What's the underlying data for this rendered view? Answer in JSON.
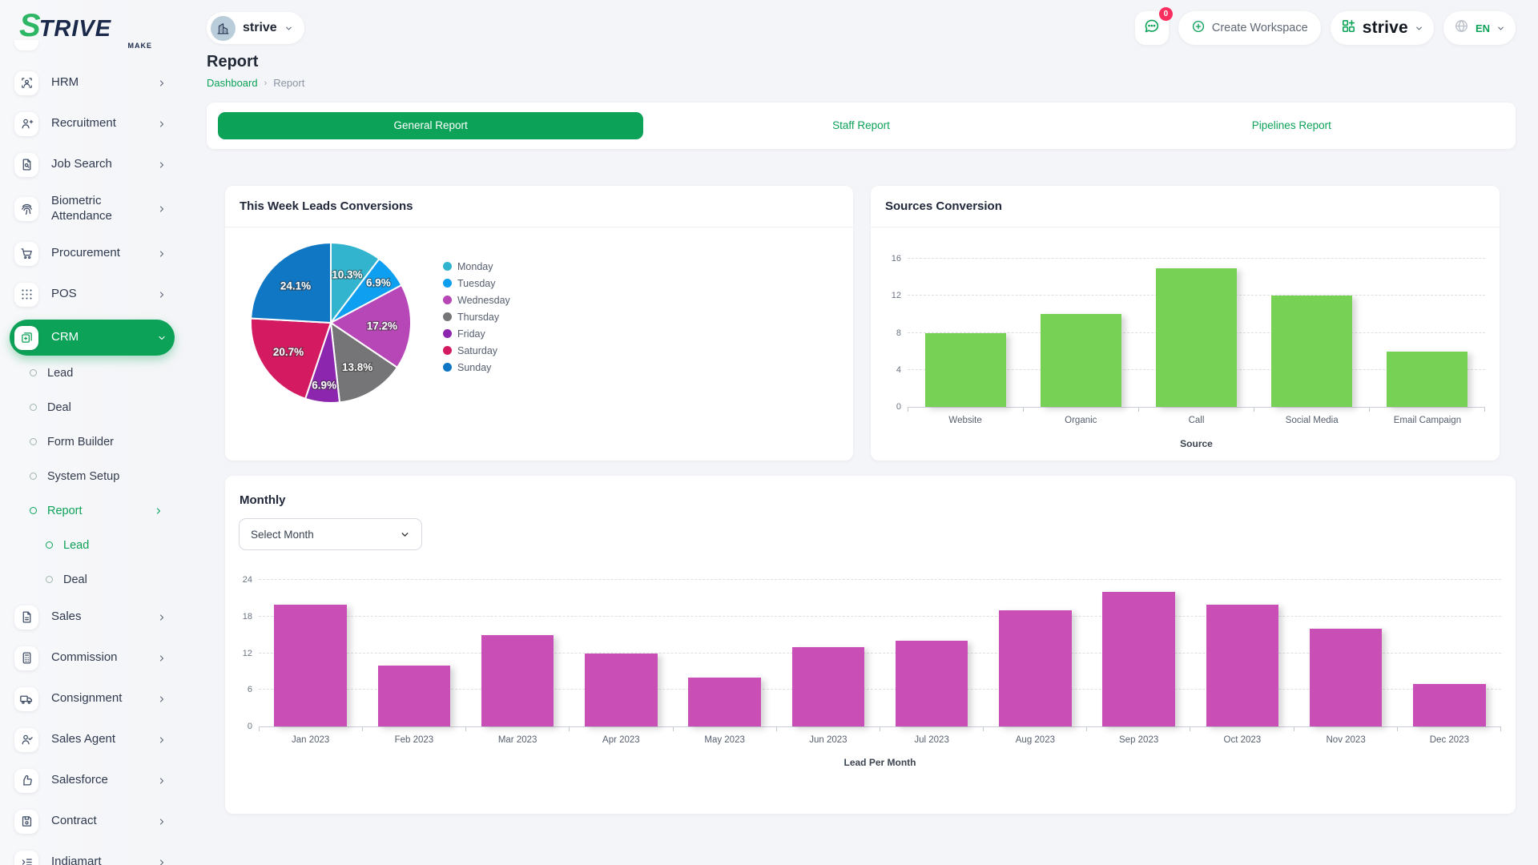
{
  "brand": {
    "logo_text": "STRIVE",
    "logo_sub": "MAKE",
    "accent": "#0ca258",
    "logo_green": "#2db664"
  },
  "header": {
    "workspace_switcher": {
      "label": "strive",
      "icon": "building-icon"
    },
    "messages": {
      "badge": "0"
    },
    "create_workspace_label": "Create Workspace",
    "brand_menu_label": "strive",
    "language": {
      "code": "EN"
    }
  },
  "page": {
    "title": "Report",
    "breadcrumb": {
      "home": "Dashboard",
      "current": "Report"
    }
  },
  "tabs": [
    {
      "label": "General Report",
      "active": true
    },
    {
      "label": "Staff Report",
      "active": false
    },
    {
      "label": "Pipelines Report",
      "active": false
    }
  ],
  "sidebar": {
    "items": [
      {
        "type": "item",
        "label": "HRM",
        "icon": "hrm",
        "chevron": "right"
      },
      {
        "type": "item",
        "label": "Recruitment",
        "icon": "recruitment",
        "chevron": "right"
      },
      {
        "type": "item",
        "label": "Job Search",
        "icon": "job-search",
        "chevron": "right"
      },
      {
        "type": "item",
        "label": "Biometric Attendance",
        "icon": "biometric",
        "chevron": "right",
        "tall": true
      },
      {
        "type": "item",
        "label": "Procurement",
        "icon": "procurement",
        "chevron": "right"
      },
      {
        "type": "item",
        "label": "POS",
        "icon": "pos",
        "chevron": "right"
      },
      {
        "type": "item",
        "label": "CRM",
        "icon": "crm",
        "chevron": "down",
        "active": true
      },
      {
        "type": "sub",
        "label": "Lead"
      },
      {
        "type": "sub",
        "label": "Deal"
      },
      {
        "type": "sub",
        "label": "Form Builder"
      },
      {
        "type": "sub",
        "label": "System Setup"
      },
      {
        "type": "sub",
        "label": "Report",
        "active": true,
        "chevron": "right"
      },
      {
        "type": "subsub",
        "label": "Lead",
        "active": true
      },
      {
        "type": "subsub",
        "label": "Deal"
      },
      {
        "type": "item",
        "label": "Sales",
        "icon": "sales",
        "chevron": "right"
      },
      {
        "type": "item",
        "label": "Commission",
        "icon": "commission",
        "chevron": "right"
      },
      {
        "type": "item",
        "label": "Consignment",
        "icon": "consignment",
        "chevron": "right"
      },
      {
        "type": "item",
        "label": "Sales Agent",
        "icon": "sales-agent",
        "chevron": "right"
      },
      {
        "type": "item",
        "label": "Salesforce",
        "icon": "salesforce",
        "chevron": "right"
      },
      {
        "type": "item",
        "label": "Contract",
        "icon": "contract",
        "chevron": "right"
      },
      {
        "type": "item",
        "label": "Indiamart",
        "icon": "indiamart",
        "chevron": "right"
      }
    ]
  },
  "monthly": {
    "title": "Monthly",
    "select_placeholder": "Select Month"
  },
  "chart_data": [
    {
      "type": "pie",
      "title": "This Week Leads Conversions",
      "labels": [
        "Monday",
        "Tuesday",
        "Wednesday",
        "Thursday",
        "Friday",
        "Saturday",
        "Sunday"
      ],
      "values": [
        10.3,
        6.9,
        17.2,
        13.8,
        6.9,
        20.7,
        24.1
      ],
      "unit": "%",
      "colors": [
        "#32b4ce",
        "#0f9ff0",
        "#b746b7",
        "#757577",
        "#8c26ae",
        "#d41a60",
        "#1077c5"
      ],
      "legend_position": "right",
      "data_labels": "percent-inside-white"
    },
    {
      "type": "bar",
      "title": "Sources Conversion",
      "categories": [
        "Website",
        "Organic",
        "Call",
        "Social Media",
        "Email Campaign"
      ],
      "values": [
        8,
        10,
        15,
        12,
        6
      ],
      "xlabel": "Source",
      "ylim": [
        0,
        16
      ],
      "yticks": [
        0,
        4,
        8,
        12,
        16
      ],
      "bar_color": "#76d155",
      "grid": "dashed"
    },
    {
      "type": "bar",
      "title": "Monthly",
      "categories": [
        "Jan 2023",
        "Feb 2023",
        "Mar 2023",
        "Apr 2023",
        "May 2023",
        "Jun 2023",
        "Jul 2023",
        "Aug 2023",
        "Sep 2023",
        "Oct 2023",
        "Nov 2023",
        "Dec 2023"
      ],
      "values": [
        20,
        10,
        15,
        12,
        8,
        13,
        14,
        19,
        22,
        20,
        16,
        7
      ],
      "xlabel": "Lead Per Month",
      "ylim": [
        0,
        24
      ],
      "yticks": [
        0,
        6,
        12,
        18,
        24
      ],
      "bar_color": "#c94fb6",
      "grid": "dashed"
    }
  ]
}
